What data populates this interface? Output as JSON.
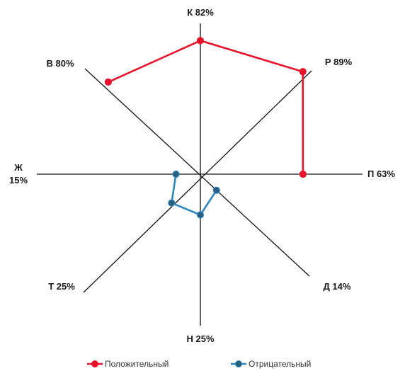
{
  "chart_data": {
    "type": "radar",
    "axes": [
      {
        "key": "K",
        "label": "К 82%",
        "angle_deg": 90
      },
      {
        "key": "R",
        "label": "Р 89%",
        "angle_deg": 45
      },
      {
        "key": "P",
        "label": "П 63%",
        "angle_deg": 0
      },
      {
        "key": "D",
        "label": "Д 14%",
        "angle_deg": -45
      },
      {
        "key": "N",
        "label": "Н 25%",
        "angle_deg": -90
      },
      {
        "key": "T",
        "label": "Т 25%",
        "angle_deg": -135
      },
      {
        "key": "Zh",
        "label_lines": [
          "Ж",
          "15%"
        ],
        "angle_deg": 180
      },
      {
        "key": "V",
        "label": "В 80%",
        "angle_deg": 135
      }
    ],
    "range": [
      0,
      100
    ],
    "series": [
      {
        "name": "Положительный",
        "color": "#e8132a",
        "closed": false,
        "points": [
          {
            "axis": "P",
            "value": 63
          },
          {
            "axis": "R",
            "value": 89
          },
          {
            "axis": "K",
            "value": 82
          },
          {
            "axis": "V",
            "value": 80
          }
        ]
      },
      {
        "name": "Отрицательный",
        "color": "#2e86c1",
        "marker_fill": "#2b5f80",
        "closed": false,
        "points": [
          {
            "axis": "Zh",
            "value": 15
          },
          {
            "axis": "T",
            "value": 25
          },
          {
            "axis": "N",
            "value": 25
          },
          {
            "axis": "D",
            "value": 14
          }
        ]
      }
    ],
    "legend": {
      "position": "bottom"
    }
  }
}
